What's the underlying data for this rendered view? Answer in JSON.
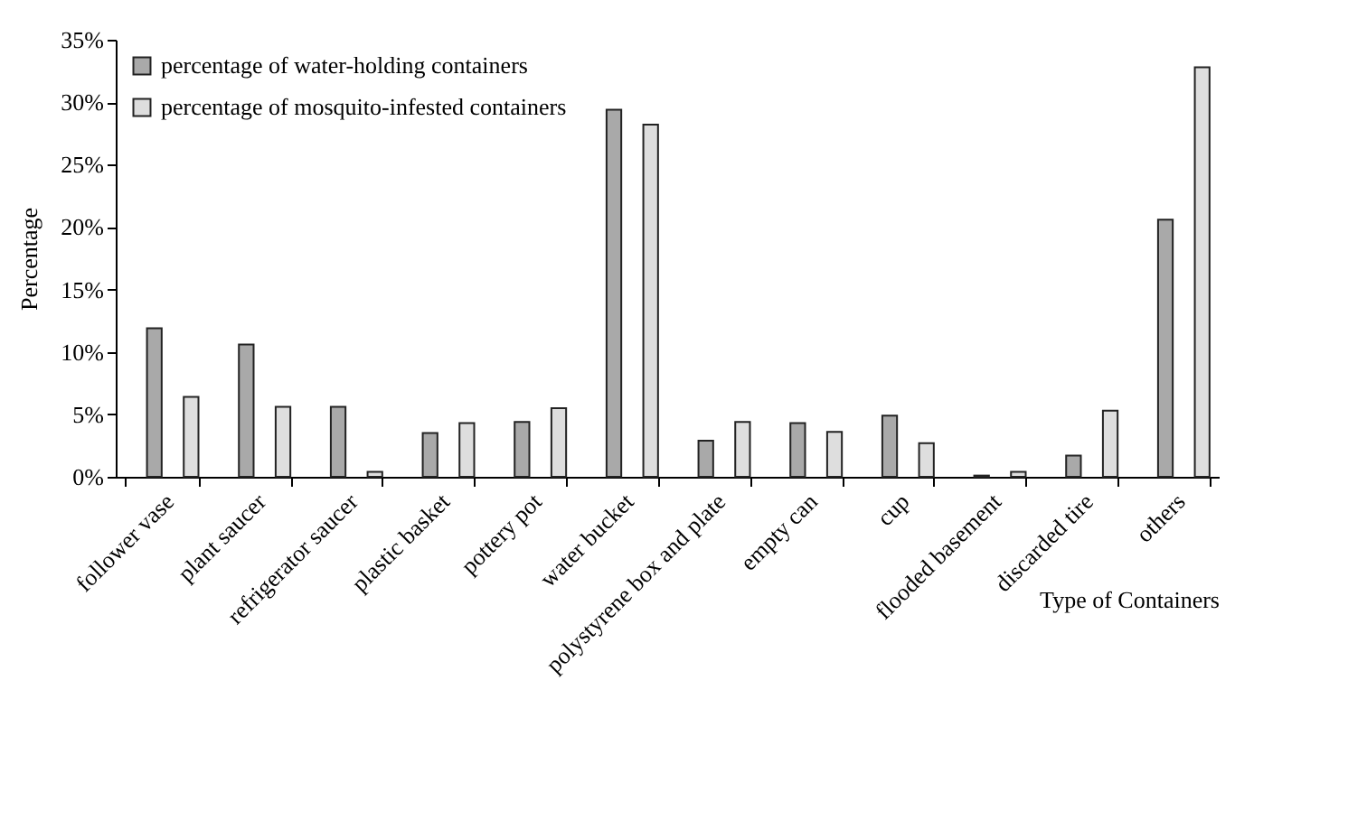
{
  "chart_data": {
    "type": "bar",
    "xlabel": "Type of Containers",
    "ylabel": "Percentage",
    "categories": [
      "follower vase",
      "plant saucer",
      "refrigerator saucer",
      "plastic basket",
      "pottery pot",
      "water bucket",
      "polystyrene box and plate",
      "empty can",
      "cup",
      "flooded basement",
      "discarded tire",
      "others"
    ],
    "series": [
      {
        "name": "percentage of water-holding containers",
        "color": "#a9a9a9",
        "values": [
          11.9,
          10.6,
          5.6,
          3.5,
          4.4,
          29.4,
          2.9,
          4.3,
          4.9,
          0.1,
          1.7,
          20.6
        ]
      },
      {
        "name": "percentage of mosquito-infested containers",
        "color": "#dedede",
        "values": [
          6.4,
          5.6,
          0.4,
          4.3,
          5.5,
          28.2,
          4.4,
          3.6,
          2.7,
          0.4,
          5.3,
          32.8
        ]
      }
    ],
    "ylim": [
      0,
      35
    ],
    "yticks": [
      {
        "value": 0,
        "label": "0%"
      },
      {
        "value": 5,
        "label": "5%"
      },
      {
        "value": 10,
        "label": "10%"
      },
      {
        "value": 15,
        "label": "15%"
      },
      {
        "value": 20,
        "label": "20%"
      },
      {
        "value": 25,
        "label": "25%"
      },
      {
        "value": 30,
        "label": "30%"
      },
      {
        "value": 35,
        "label": "35%"
      }
    ],
    "grid": false,
    "legend": "top left"
  }
}
